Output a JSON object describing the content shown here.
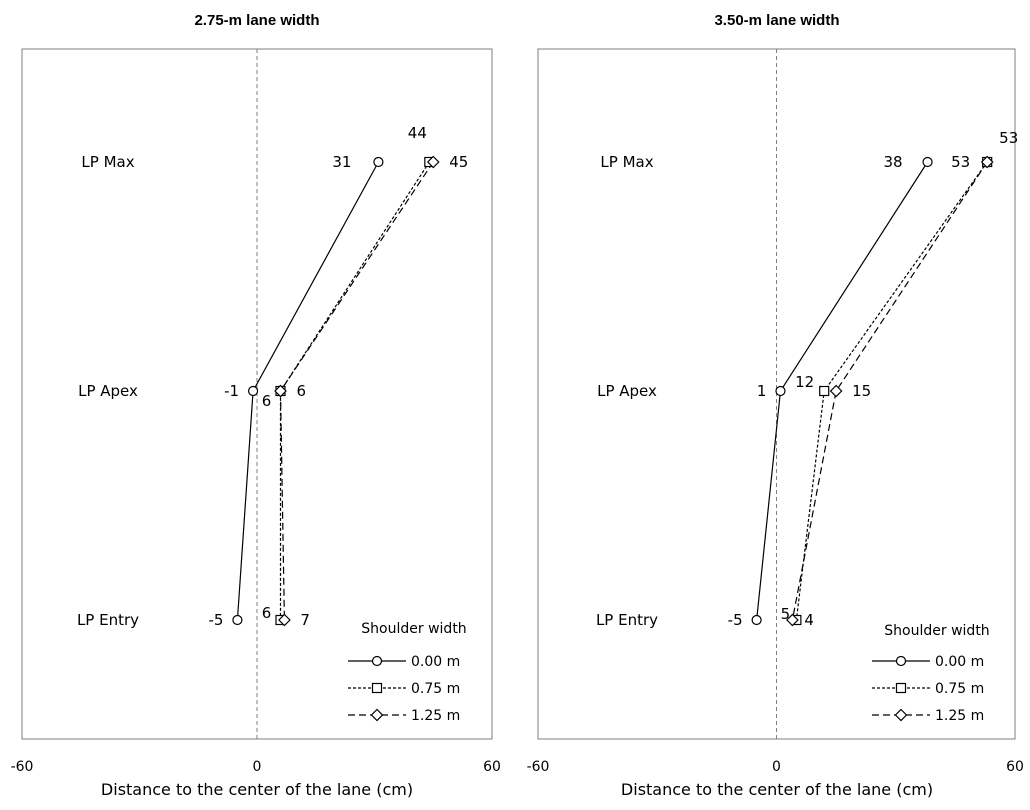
{
  "chart_data": [
    {
      "type": "line",
      "title": "2.75-m lane width",
      "xlabel": "Distance to the center of the lane (cm)",
      "xlim": [
        -60,
        60
      ],
      "xticks": [
        "-60",
        "0",
        "60"
      ],
      "categories": [
        "LP Max",
        "LP Apex",
        "LP Entry"
      ],
      "legend_title": "Shoulder width",
      "legend_position": "bottom-right",
      "series": [
        {
          "name": "0.00 m",
          "style": "solid",
          "marker": "circle",
          "x": [
            31,
            -1,
            -5
          ],
          "labels": [
            "31",
            "-1",
            "-5"
          ]
        },
        {
          "name": "0.75 m",
          "style": "dotted",
          "marker": "square",
          "x": [
            44,
            6,
            6
          ],
          "labels": [
            "44",
            "6",
            "6"
          ]
        },
        {
          "name": "1.25 m",
          "style": "dashed",
          "marker": "diamond",
          "x": [
            45,
            6,
            7
          ],
          "labels": [
            "45",
            "6",
            "7"
          ]
        }
      ]
    },
    {
      "type": "line",
      "title": "3.50-m lane width",
      "xlabel": "Distance to the center of the lane (cm)",
      "xlim": [
        -60,
        60
      ],
      "xticks": [
        "-60",
        "0",
        "60"
      ],
      "categories": [
        "LP Max",
        "LP Apex",
        "LP Entry"
      ],
      "legend_title": "Shoulder width",
      "legend_position": "bottom-right",
      "series": [
        {
          "name": "0.00 m",
          "style": "solid",
          "marker": "circle",
          "x": [
            38,
            1,
            -5
          ],
          "labels": [
            "38",
            "1",
            "-5"
          ]
        },
        {
          "name": "0.75 m",
          "style": "dotted",
          "marker": "square",
          "x": [
            53,
            12,
            5
          ],
          "labels": [
            "53",
            "12",
            "5"
          ]
        },
        {
          "name": "1.25 m",
          "style": "dashed",
          "marker": "diamond",
          "x": [
            53,
            15,
            4
          ],
          "labels": [
            "53",
            "15",
            "4"
          ]
        }
      ]
    }
  ]
}
